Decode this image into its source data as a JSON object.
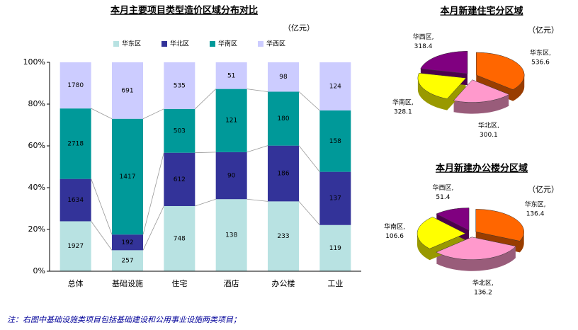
{
  "chart_data": [
    {
      "type": "percent_bar",
      "title": "本月主要项目类型造价区域分布对比",
      "subtitle": "（亿元）",
      "categories": [
        "总体",
        "基础设施",
        "住宅",
        "酒店",
        "办公楼",
        "工业"
      ],
      "series": [
        {
          "name": "华东区",
          "color": "#b8e2e2",
          "values": [
            1927,
            257,
            748,
            138,
            233,
            119
          ]
        },
        {
          "name": "华北区",
          "color": "#333399",
          "values": [
            1634,
            192,
            612,
            90,
            186,
            137
          ]
        },
        {
          "name": "华南区",
          "color": "#009999",
          "values": [
            2718,
            1417,
            503,
            121,
            180,
            158
          ]
        },
        {
          "name": "华西区",
          "color": "#ccccff",
          "values": [
            1780,
            691,
            535,
            51,
            98,
            124
          ]
        }
      ],
      "ylim": [
        0,
        100
      ],
      "yticks": [
        {
          "value": 0,
          "label": "0%"
        },
        {
          "value": 20,
          "label": "20%"
        },
        {
          "value": 40,
          "label": "40%"
        },
        {
          "value": 60,
          "label": "60%"
        },
        {
          "value": 80,
          "label": "80%"
        },
        {
          "value": 100,
          "label": "100%"
        }
      ],
      "legend": "top",
      "series_lines": true
    },
    {
      "type": "pie",
      "title": "本月新建住宅分区域",
      "subtitle": "（亿元）",
      "categories": [
        "华东区,",
        "华北区,",
        "华南区,",
        "华西区,"
      ],
      "values": [
        536.6,
        300.1,
        328.1,
        318.4
      ],
      "colors": [
        "#ff6600",
        "#ff99cc",
        "#ffff00",
        "#800080"
      ]
    },
    {
      "type": "pie",
      "title": "本月新建办公楼分区域",
      "subtitle": "（亿元）",
      "categories": [
        "华东区,",
        "华北区,",
        "华南区,",
        "华西区,"
      ],
      "values": [
        136.4,
        136.2,
        106.6,
        51.4
      ],
      "colors": [
        "#ff6600",
        "#ff99cc",
        "#ffff00",
        "#800080"
      ]
    }
  ],
  "note": "注：右图中基础设施类项目包括基础建设和公用事业设施两类项目；"
}
